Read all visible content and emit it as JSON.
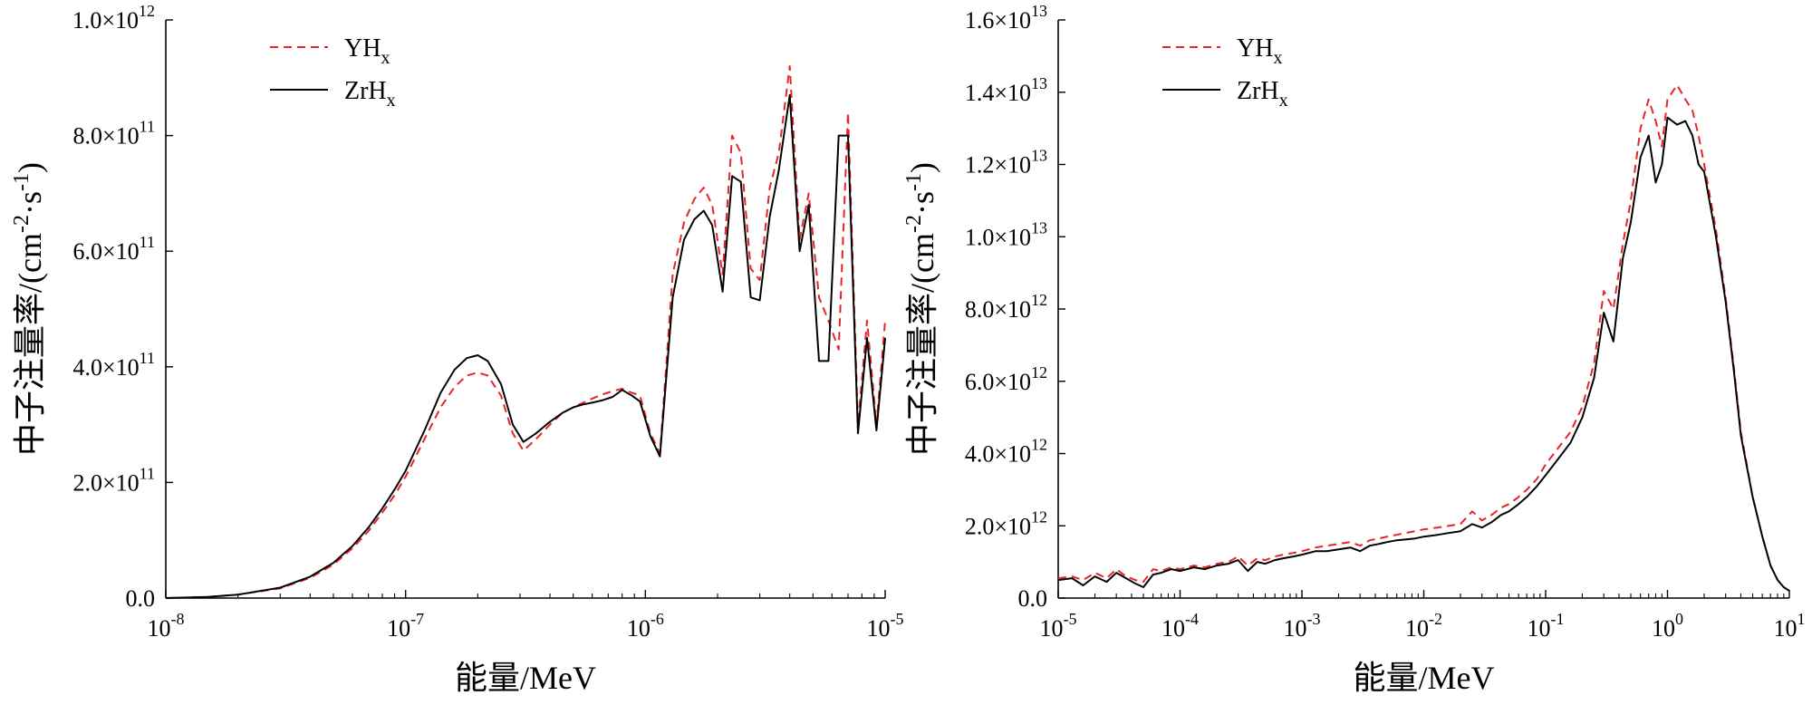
{
  "chart_data": [
    {
      "type": "line",
      "xlabel": "能量/MeV",
      "ylabel": "中子注量率/(cm-2·s-1)",
      "ylabel_base": "中子注量率/(cm",
      "ylabel_exp1": "-2",
      "ylabel_mid": "·s",
      "ylabel_exp2": "-1",
      "ylabel_end": ")",
      "x_scale": "log",
      "xlim": [
        1e-08,
        1e-05
      ],
      "ylim": [
        0,
        1000000000000.0
      ],
      "y_tick_values": [
        0,
        200000000000.0,
        400000000000.0,
        600000000000.0,
        800000000000.0,
        1000000000000.0
      ],
      "y_tick_labels": [
        {
          "mant": "0.0",
          "exp": ""
        },
        {
          "mant": "2.0×10",
          "exp": "11"
        },
        {
          "mant": "4.0×10",
          "exp": "11"
        },
        {
          "mant": "6.0×10",
          "exp": "11"
        },
        {
          "mant": "8.0×10",
          "exp": "11"
        },
        {
          "mant": "1.0×10",
          "exp": "12"
        }
      ],
      "x_tick_values": [
        1e-08,
        1e-07,
        1e-06,
        1e-05
      ],
      "x_tick_labels": [
        {
          "base": "10",
          "exp": "-8"
        },
        {
          "base": "10",
          "exp": "-7"
        },
        {
          "base": "10",
          "exp": "-6"
        },
        {
          "base": "10",
          "exp": "-5"
        }
      ],
      "grid": false,
      "legend_position": "top-left",
      "series": [
        {
          "name_base": "YH",
          "name_sub": "x",
          "color": "#e8242a",
          "style": "dashed",
          "x": [
            1e-08,
            1.5e-08,
            2e-08,
            3e-08,
            4e-08,
            5e-08,
            6e-08,
            7e-08,
            8e-08,
            9e-08,
            1e-07,
            1.2e-07,
            1.4e-07,
            1.6e-07,
            1.8e-07,
            2e-07,
            2.2e-07,
            2.5e-07,
            2.8e-07,
            3.1e-07,
            3.5e-07,
            4e-07,
            4.5e-07,
            5e-07,
            5.5e-07,
            6e-07,
            6.6e-07,
            7.3e-07,
            8e-07,
            8.8e-07,
            9.5e-07,
            1.05e-06,
            1.15e-06,
            1.3e-06,
            1.45e-06,
            1.6e-06,
            1.75e-06,
            1.9e-06,
            2.1e-06,
            2.3e-06,
            2.5e-06,
            2.75e-06,
            3e-06,
            3.3e-06,
            3.6e-06,
            4e-06,
            4.4e-06,
            4.8e-06,
            5.3e-06,
            5.8e-06,
            6.4e-06,
            7e-06,
            7.7e-06,
            8.4e-06,
            9.2e-06,
            1e-05
          ],
          "y": [
            0,
            2000000000.0,
            6000000000.0,
            17000000000.0,
            35000000000.0,
            58000000000.0,
            86000000000.0,
            116000000000.0,
            148000000000.0,
            178000000000.0,
            210000000000.0,
            275000000000.0,
            330000000000.0,
            365000000000.0,
            385000000000.0,
            390000000000.0,
            385000000000.0,
            350000000000.0,
            285000000000.0,
            255000000000.0,
            275000000000.0,
            300000000000.0,
            320000000000.0,
            330000000000.0,
            338000000000.0,
            345000000000.0,
            352000000000.0,
            358000000000.0,
            362000000000.0,
            355000000000.0,
            350000000000.0,
            285000000000.0,
            250000000000.0,
            560000000000.0,
            650000000000.0,
            690000000000.0,
            710000000000.0,
            680000000000.0,
            560000000000.0,
            800000000000.0,
            770000000000.0,
            570000000000.0,
            550000000000.0,
            710000000000.0,
            770000000000.0,
            920000000000.0,
            620000000000.0,
            700000000000.0,
            520000000000.0,
            480000000000.0,
            430000000000.0,
            840000000000.0,
            300000000000.0,
            480000000000.0,
            300000000000.0,
            480000000000.0
          ]
        },
        {
          "name_base": "ZrH",
          "name_sub": "x",
          "color": "#000000",
          "style": "solid",
          "x": [
            1e-08,
            1.5e-08,
            2e-08,
            3e-08,
            4e-08,
            5e-08,
            6e-08,
            7e-08,
            8e-08,
            9e-08,
            1e-07,
            1.2e-07,
            1.4e-07,
            1.6e-07,
            1.8e-07,
            2e-07,
            2.2e-07,
            2.5e-07,
            2.8e-07,
            3.1e-07,
            3.5e-07,
            4e-07,
            4.5e-07,
            5e-07,
            5.5e-07,
            6e-07,
            6.6e-07,
            7.3e-07,
            8e-07,
            8.8e-07,
            9.5e-07,
            1.05e-06,
            1.15e-06,
            1.3e-06,
            1.45e-06,
            1.6e-06,
            1.75e-06,
            1.9e-06,
            2.1e-06,
            2.3e-06,
            2.5e-06,
            2.75e-06,
            3e-06,
            3.3e-06,
            3.6e-06,
            4e-06,
            4.4e-06,
            4.8e-06,
            5.3e-06,
            5.8e-06,
            6.4e-06,
            7e-06,
            7.7e-06,
            8.4e-06,
            9.2e-06,
            1e-05
          ],
          "y": [
            0,
            2000000000.0,
            6000000000.0,
            18000000000.0,
            37000000000.0,
            61000000000.0,
            90000000000.0,
            122000000000.0,
            155000000000.0,
            188000000000.0,
            220000000000.0,
            290000000000.0,
            355000000000.0,
            395000000000.0,
            415000000000.0,
            420000000000.0,
            410000000000.0,
            370000000000.0,
            300000000000.0,
            270000000000.0,
            285000000000.0,
            305000000000.0,
            320000000000.0,
            330000000000.0,
            335000000000.0,
            338000000000.0,
            342000000000.0,
            348000000000.0,
            360000000000.0,
            350000000000.0,
            340000000000.0,
            280000000000.0,
            245000000000.0,
            520000000000.0,
            620000000000.0,
            655000000000.0,
            670000000000.0,
            645000000000.0,
            530000000000.0,
            730000000000.0,
            720000000000.0,
            520000000000.0,
            515000000000.0,
            660000000000.0,
            740000000000.0,
            870000000000.0,
            600000000000.0,
            680000000000.0,
            410000000000.0,
            410000000000.0,
            800000000000.0,
            800000000000.0,
            285000000000.0,
            450000000000.0,
            290000000000.0,
            450000000000.0
          ]
        }
      ]
    },
    {
      "type": "line",
      "xlabel": "能量/MeV",
      "ylabel": "中子注量率/(cm-2·s-1)",
      "ylabel_base": "中子注量率/(cm",
      "ylabel_exp1": "-2",
      "ylabel_mid": "·s",
      "ylabel_exp2": "-1",
      "ylabel_end": ")",
      "x_scale": "log",
      "xlim": [
        1e-05,
        10
      ],
      "ylim": [
        0,
        16000000000000.0
      ],
      "y_tick_values": [
        0,
        2000000000000.0,
        4000000000000.0,
        6000000000000.0,
        8000000000000.0,
        10000000000000.0,
        12000000000000.0,
        14000000000000.0,
        16000000000000.0
      ],
      "y_tick_labels": [
        {
          "mant": "0.0",
          "exp": ""
        },
        {
          "mant": "2.0×10",
          "exp": "12"
        },
        {
          "mant": "4.0×10",
          "exp": "12"
        },
        {
          "mant": "6.0×10",
          "exp": "12"
        },
        {
          "mant": "8.0×10",
          "exp": "12"
        },
        {
          "mant": "1.0×10",
          "exp": "13"
        },
        {
          "mant": "1.2×10",
          "exp": "13"
        },
        {
          "mant": "1.4×10",
          "exp": "13"
        },
        {
          "mant": "1.6×10",
          "exp": "13"
        }
      ],
      "x_tick_values": [
        1e-05,
        0.0001,
        0.001,
        0.01,
        0.1,
        1,
        10
      ],
      "x_tick_labels": [
        {
          "base": "10",
          "exp": "-5"
        },
        {
          "base": "10",
          "exp": "-4"
        },
        {
          "base": "10",
          "exp": "-3"
        },
        {
          "base": "10",
          "exp": "-2"
        },
        {
          "base": "10",
          "exp": "-1"
        },
        {
          "base": "10",
          "exp": "0"
        },
        {
          "base": "10",
          "exp": "1"
        }
      ],
      "grid": false,
      "legend_position": "top-left",
      "series": [
        {
          "name_base": "YH",
          "name_sub": "x",
          "color": "#e8242a",
          "style": "dashed",
          "x": [
            1e-05,
            1.3e-05,
            1.6e-05,
            2e-05,
            2.5e-05,
            3e-05,
            3.6e-05,
            4.3e-05,
            5e-05,
            6e-05,
            7e-05,
            8.5e-05,
            0.0001,
            0.00013,
            0.00016,
            0.0002,
            0.00025,
            0.0003,
            0.00036,
            0.00043,
            0.0005,
            0.0006,
            0.0007,
            0.00085,
            0.001,
            0.0013,
            0.0016,
            0.002,
            0.0025,
            0.003,
            0.0036,
            0.0043,
            0.005,
            0.006,
            0.007,
            0.0085,
            0.01,
            0.013,
            0.016,
            0.02,
            0.025,
            0.03,
            0.036,
            0.043,
            0.05,
            0.06,
            0.07,
            0.085,
            0.1,
            0.13,
            0.16,
            0.2,
            0.25,
            0.3,
            0.36,
            0.43,
            0.5,
            0.6,
            0.7,
            0.8,
            0.9,
            1.0,
            1.2,
            1.4,
            1.6,
            1.8,
            2.0,
            2.5,
            3.0,
            3.5,
            4.0,
            5.0,
            6.0,
            7.0,
            8.0,
            9.0,
            10
          ],
          "y": [
            550000000000.0,
            600000000000.0,
            500000000000.0,
            700000000000.0,
            550000000000.0,
            800000000000.0,
            600000000000.0,
            500000000000.0,
            450000000000.0,
            800000000000.0,
            750000000000.0,
            850000000000.0,
            800000000000.0,
            900000000000.0,
            850000000000.0,
            950000000000.0,
            1000000000000.0,
            1150000000000.0,
            900000000000.0,
            1100000000000.0,
            1050000000000.0,
            1150000000000.0,
            1200000000000.0,
            1250000000000.0,
            1300000000000.0,
            1400000000000.0,
            1450000000000.0,
            1500000000000.0,
            1550000000000.0,
            1450000000000.0,
            1600000000000.0,
            1650000000000.0,
            1700000000000.0,
            1750000000000.0,
            1800000000000.0,
            1850000000000.0,
            1900000000000.0,
            1950000000000.0,
            2000000000000.0,
            2050000000000.0,
            2400000000000.0,
            2150000000000.0,
            2300000000000.0,
            2500000000000.0,
            2600000000000.0,
            2800000000000.0,
            3000000000000.0,
            3300000000000.0,
            3700000000000.0,
            4200000000000.0,
            4600000000000.0,
            5300000000000.0,
            6500000000000.0,
            8500000000000.0,
            8000000000000.0,
            9800000000000.0,
            11000000000000.0,
            13000000000000.0,
            13800000000000.0,
            13200000000000.0,
            12500000000000.0,
            13800000000000.0,
            14200000000000.0,
            13800000000000.0,
            13500000000000.0,
            12800000000000.0,
            12000000000000.0,
            10200000000000.0,
            8300000000000.0,
            6400000000000.0,
            4600000000000.0,
            2800000000000.0,
            1700000000000.0,
            900000000000.0,
            500000000000.0,
            300000000000.0,
            200000000000.0
          ]
        },
        {
          "name_base": "ZrH",
          "name_sub": "x",
          "color": "#000000",
          "style": "solid",
          "x": [
            1e-05,
            1.3e-05,
            1.6e-05,
            2e-05,
            2.5e-05,
            3e-05,
            3.6e-05,
            4.3e-05,
            5e-05,
            6e-05,
            7e-05,
            8.5e-05,
            0.0001,
            0.00013,
            0.00016,
            0.0002,
            0.00025,
            0.0003,
            0.00036,
            0.00043,
            0.0005,
            0.0006,
            0.0007,
            0.00085,
            0.001,
            0.0013,
            0.0016,
            0.002,
            0.0025,
            0.003,
            0.0036,
            0.0043,
            0.005,
            0.006,
            0.007,
            0.0085,
            0.01,
            0.013,
            0.016,
            0.02,
            0.025,
            0.03,
            0.036,
            0.043,
            0.05,
            0.06,
            0.07,
            0.085,
            0.1,
            0.13,
            0.16,
            0.2,
            0.25,
            0.3,
            0.36,
            0.43,
            0.5,
            0.6,
            0.7,
            0.8,
            0.9,
            1.0,
            1.2,
            1.4,
            1.6,
            1.8,
            2.0,
            2.5,
            3.0,
            3.5,
            4.0,
            5.0,
            6.0,
            7.0,
            8.0,
            9.0,
            10
          ],
          "y": [
            500000000000.0,
            550000000000.0,
            350000000000.0,
            600000000000.0,
            450000000000.0,
            700000000000.0,
            550000000000.0,
            400000000000.0,
            300000000000.0,
            650000000000.0,
            700000000000.0,
            800000000000.0,
            750000000000.0,
            850000000000.0,
            800000000000.0,
            900000000000.0,
            950000000000.0,
            1050000000000.0,
            750000000000.0,
            1000000000000.0,
            950000000000.0,
            1050000000000.0,
            1100000000000.0,
            1150000000000.0,
            1200000000000.0,
            1300000000000.0,
            1300000000000.0,
            1350000000000.0,
            1400000000000.0,
            1300000000000.0,
            1450000000000.0,
            1500000000000.0,
            1550000000000.0,
            1600000000000.0,
            1620000000000.0,
            1650000000000.0,
            1700000000000.0,
            1750000000000.0,
            1800000000000.0,
            1850000000000.0,
            2050000000000.0,
            1950000000000.0,
            2100000000000.0,
            2300000000000.0,
            2400000000000.0,
            2600000000000.0,
            2800000000000.0,
            3100000000000.0,
            3400000000000.0,
            3900000000000.0,
            4300000000000.0,
            5000000000000.0,
            6100000000000.0,
            7900000000000.0,
            7100000000000.0,
            9400000000000.0,
            10400000000000.0,
            12200000000000.0,
            12800000000000.0,
            11500000000000.0,
            12000000000000.0,
            13300000000000.0,
            13100000000000.0,
            13200000000000.0,
            12800000000000.0,
            12000000000000.0,
            11800000000000.0,
            10000000000000.0,
            8200000000000.0,
            6300000000000.0,
            4500000000000.0,
            2800000000000.0,
            1700000000000.0,
            900000000000.0,
            500000000000.0,
            300000000000.0,
            200000000000.0
          ]
        }
      ]
    }
  ]
}
